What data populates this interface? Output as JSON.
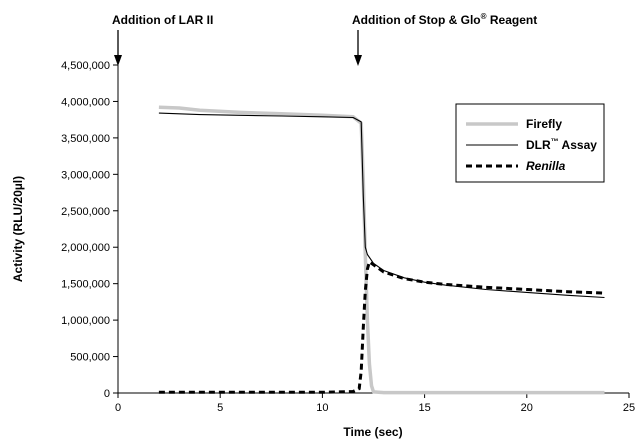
{
  "chart_data": {
    "type": "line",
    "xlabel": "Time (sec)",
    "ylabel": "Activity (RLU/20µl)",
    "xlim": [
      0,
      25
    ],
    "ylim": [
      0,
      4500000
    ],
    "x_ticks": [
      0,
      5,
      10,
      15,
      20,
      25
    ],
    "y_ticks": [
      0,
      500000,
      1000000,
      1500000,
      2000000,
      2500000,
      3000000,
      3500000,
      4000000,
      4500000
    ],
    "x_tick_labels": [
      "0",
      "5",
      "10",
      "15",
      "20",
      "25"
    ],
    "y_tick_labels": [
      "0",
      "500,000",
      "1,000,000",
      "1,500,000",
      "2,000,000",
      "2,500,000",
      "3,000,000",
      "3,500,000",
      "4,000,000",
      "4,500,000"
    ],
    "grid": false,
    "legend_position": "right",
    "annotations": [
      {
        "text": "Addition of LAR II",
        "x": 0.4
      },
      {
        "text_main": "Addition of Stop & Glo",
        "text_sup": "®",
        "text_tail": " Reagent",
        "x": 11.9
      }
    ],
    "series": [
      {
        "name": "Firefly",
        "color": "#c8c8c8",
        "style": "solid-thick",
        "x": [
          2.0,
          3.0,
          4.0,
          6.0,
          8.0,
          10.0,
          11.5,
          11.9,
          12.0,
          12.1,
          12.2,
          12.3,
          12.4,
          12.5,
          13.0,
          15.0,
          18.0,
          21.0,
          23.8
        ],
        "y": [
          3920000,
          3910000,
          3880000,
          3850000,
          3830000,
          3810000,
          3790000,
          3700000,
          2900000,
          1900000,
          1000000,
          400000,
          100000,
          15000,
          5000,
          5000,
          5000,
          5000,
          5000
        ]
      },
      {
        "name_main": "DLR",
        "name_sup": "™",
        "name_tail": " Assay",
        "color": "#000000",
        "style": "solid-thin",
        "x": [
          2.0,
          4.0,
          6.0,
          8.0,
          10.0,
          11.5,
          11.9,
          12.0,
          12.1,
          12.2,
          12.5,
          13.0,
          14.0,
          15.0,
          16.0,
          18.0,
          20.0,
          22.0,
          23.8
        ],
        "y": [
          3840000,
          3820000,
          3810000,
          3800000,
          3790000,
          3780000,
          3720000,
          2700000,
          2000000,
          1900000,
          1780000,
          1680000,
          1580000,
          1520000,
          1480000,
          1420000,
          1380000,
          1340000,
          1310000
        ]
      },
      {
        "name": "Renilla",
        "color": "#000000",
        "style": "dashed",
        "x": [
          2.0,
          5.0,
          8.0,
          10.0,
          11.5,
          11.8,
          11.9,
          12.0,
          12.1,
          12.2,
          12.3,
          12.6,
          13.0,
          14.0,
          15.0,
          16.0,
          18.0,
          20.0,
          22.0,
          23.8
        ],
        "y": [
          10000,
          10000,
          10000,
          10000,
          20000,
          60000,
          300000,
          900000,
          1400000,
          1700000,
          1800000,
          1740000,
          1660000,
          1570000,
          1520000,
          1490000,
          1450000,
          1420000,
          1390000,
          1370000
        ]
      }
    ]
  }
}
